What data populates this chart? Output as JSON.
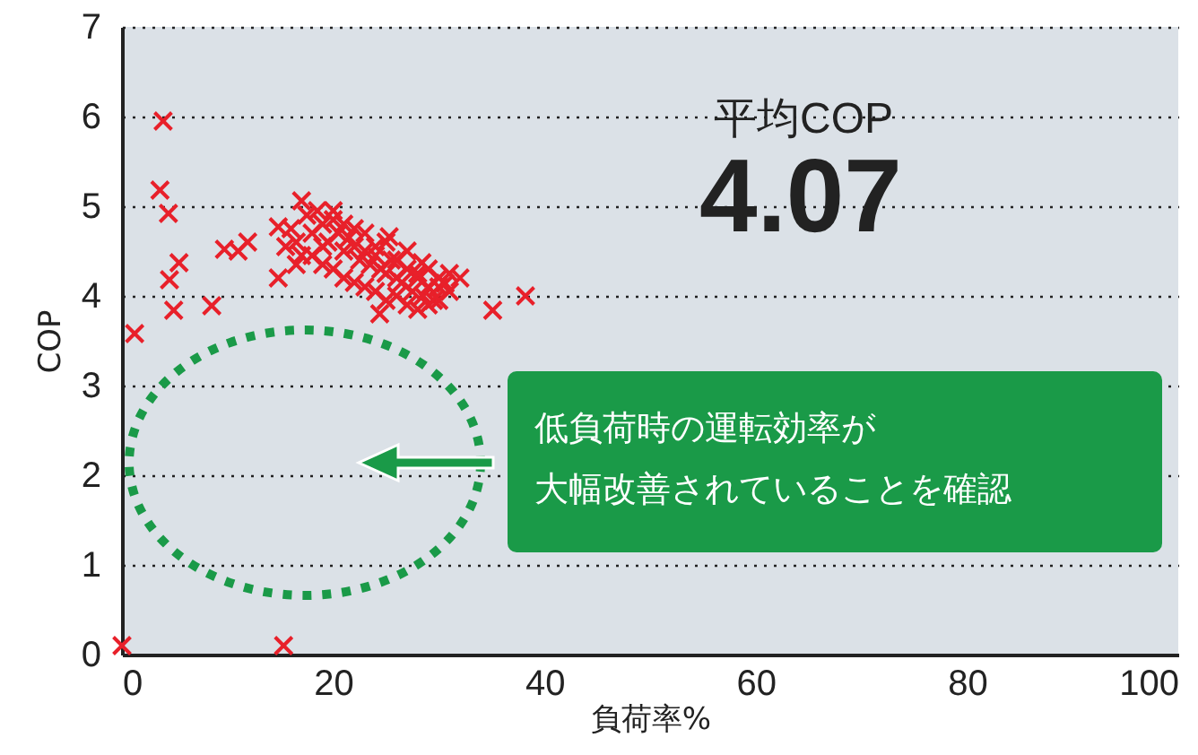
{
  "chart_data": {
    "type": "scatter",
    "xlabel": "負荷率%",
    "ylabel": "COP",
    "annotations": [
      "平均COP",
      "4.07",
      "低負荷時の運転効率が",
      "大幅改善されていることを確認"
    ],
    "x": [
      0,
      15.3,
      1.2,
      3.9,
      3.6,
      4.4,
      5.4,
      4.5,
      4.9,
      8.5,
      9.7,
      11,
      11.9,
      35.1,
      38.2,
      17,
      14.8,
      14.8,
      25.3,
      30.6,
      24.4,
      28.4,
      16,
      16.5,
      17.5,
      18,
      18.5,
      19,
      19.5,
      20,
      20.5,
      21,
      21.5,
      22,
      22.5,
      23,
      23.5,
      24,
      24.5,
      25,
      25.5,
      26,
      26.5,
      27,
      27.5,
      28,
      28.5,
      29,
      29.5,
      30,
      31,
      18,
      19,
      20,
      21,
      22,
      23,
      24,
      25,
      26,
      27,
      28,
      29,
      30,
      31,
      15.5,
      17,
      19,
      21,
      23,
      25,
      27,
      29,
      16.5,
      20,
      22,
      24,
      26,
      28,
      30,
      32
    ],
    "values": [
      0.1,
      0.1,
      3.58,
      5.95,
      5.18,
      4.92,
      4.37,
      4.18,
      3.84,
      3.89,
      4.52,
      4.5,
      4.6,
      3.84,
      4.0,
      5.06,
      4.77,
      4.2,
      4.66,
      4.14,
      3.8,
      4.37,
      4.75,
      4.6,
      4.9,
      4.7,
      4.95,
      4.8,
      4.6,
      4.85,
      4.7,
      4.5,
      4.65,
      4.55,
      4.4,
      4.5,
      4.35,
      4.45,
      4.3,
      4.25,
      4.4,
      4.2,
      4.15,
      4.3,
      4.05,
      4.2,
      4.0,
      4.1,
      3.95,
      4.2,
      4.25,
      4.45,
      4.35,
      4.3,
      4.2,
      4.15,
      4.1,
      4.05,
      3.95,
      4.0,
      3.9,
      3.85,
      3.9,
      3.95,
      4.05,
      4.55,
      4.45,
      4.55,
      4.8,
      4.7,
      4.6,
      4.5,
      4.3,
      4.35,
      4.95,
      4.75,
      4.55,
      4.4,
      4.25,
      4.1,
      4.2
    ],
    "color": "#e8202a",
    "marker": "cross",
    "xlim": [
      0,
      100
    ],
    "xticks": [
      0,
      20,
      40,
      60,
      80,
      100
    ],
    "ylim": [
      0,
      7
    ],
    "yticks": [
      0,
      1,
      2,
      3,
      4,
      5,
      6,
      7
    ],
    "grid": "y"
  }
}
